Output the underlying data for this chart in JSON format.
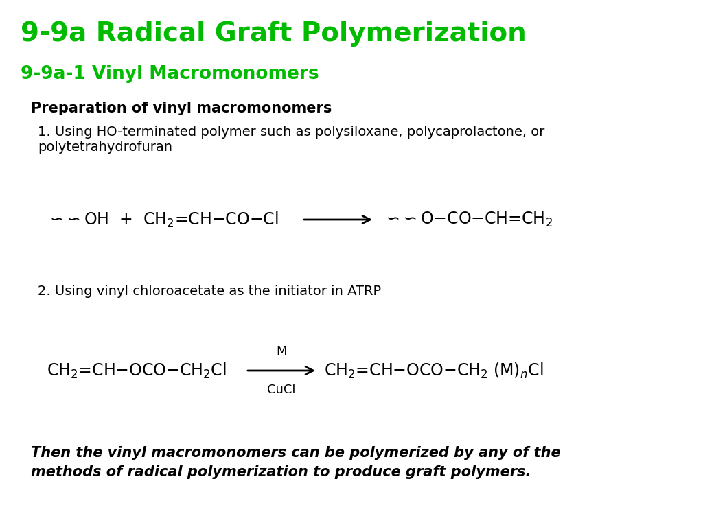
{
  "title": "9-9a Radical Graft Polymerization",
  "subtitle": "9-9a-1 Vinyl Macromonomers",
  "title_color": "#00bb00",
  "subtitle_color": "#00bb00",
  "bg_color": "#ffffff",
  "section_bold": "Preparation of vinyl macromonomers",
  "item1_line1": "1. Using HO-terminated polymer such as polysiloxane, polycaprolactone, or",
  "item1_line2": "polytetrahydrofuran",
  "item2_text": "2. Using vinyl chloroacetate as the initiator in ATRP",
  "rxn2_above": "M",
  "rxn2_below": "CuCl",
  "footer_line1": "Then the vinyl macromonomers can be polymerized by any of the",
  "footer_line2": "methods of radical polymerization to produce graft polymers."
}
